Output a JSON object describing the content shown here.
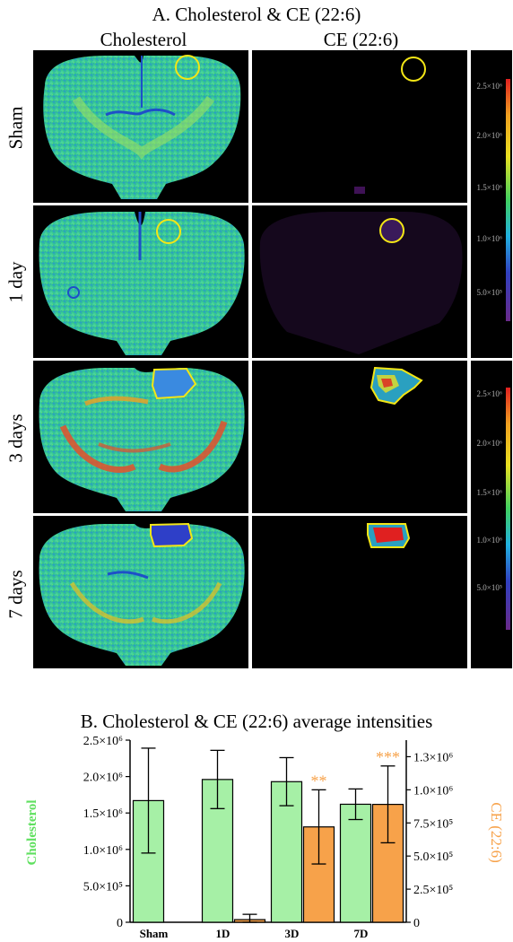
{
  "panel_a": {
    "title": "A. Cholesterol & CE (22:6)",
    "column_headers": [
      "Cholesterol",
      "CE (22:6)"
    ],
    "row_labels": [
      "Sham",
      "1 day",
      "3 days",
      "7 days"
    ],
    "colorbar_ticks_top": [
      "2.5×10⁶",
      "2.0×10⁶",
      "1.5×10⁶",
      "1.0×10⁶",
      "5.0×10⁵"
    ],
    "colorbar_ticks_bottom": [
      "2.5×10⁶",
      "2.0×10⁶",
      "1.5×10⁶",
      "1.0×10⁶",
      "5.0×10⁵"
    ],
    "colors": {
      "tissue_base": "#36c98f",
      "tissue_high": "#e4502a",
      "tissue_low": "#2e5fd0",
      "roi": "#f3e616"
    }
  },
  "panel_b": {
    "title": "B. Cholesterol & CE (22:6) average intensities"
  },
  "chart_data": {
    "type": "bar",
    "categories": [
      "Sham",
      "1D",
      "3D",
      "7D"
    ],
    "series": [
      {
        "name": "Cholesterol",
        "axis": "left",
        "color": "#a6f0a6",
        "values": [
          1670000,
          1960000,
          1930000,
          1620000
        ],
        "errors": [
          720000,
          400000,
          330000,
          210000
        ]
      },
      {
        "name": "CE (22:6)",
        "axis": "right",
        "color": "#f7a24a",
        "values": [
          0,
          20000,
          720000,
          890000
        ],
        "errors": [
          0,
          40000,
          280000,
          290000
        ],
        "significance": [
          "",
          "",
          "**",
          "***"
        ]
      }
    ],
    "ylabel_left": "Cholesterol",
    "ylabel_right": "CE (22:6)",
    "ylim_left": [
      0,
      2500000
    ],
    "ylim_right": [
      0,
      1375000
    ],
    "yticks_left": [
      "0",
      "5.0×10⁵",
      "1.0×10⁶",
      "1.5×10⁶",
      "2.0×10⁶",
      "2.5×10⁶"
    ],
    "yticks_right": [
      "0",
      "2.5×10⁵",
      "5.0×10⁵",
      "7.5×10⁵",
      "1.0×10⁶",
      "1.3×10⁶"
    ]
  }
}
